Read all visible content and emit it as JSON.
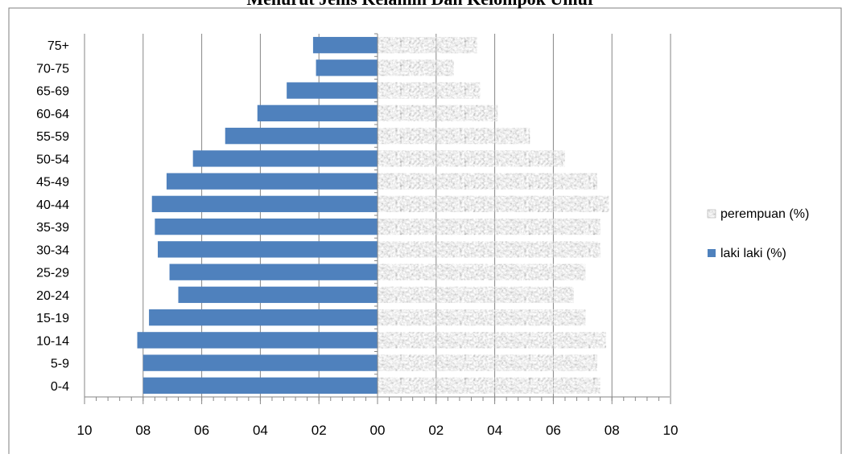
{
  "title": "Menurut Jenis Kelamin Dan Kelompok Umur",
  "colors": {
    "male": "#4f81bd",
    "female_base": "#c8c8c8",
    "gridline": "#868686",
    "axis": "#868686",
    "frame": "#7f7f7f"
  },
  "chart_data": {
    "type": "bar",
    "orientation": "horizontal",
    "style": "population-pyramid",
    "categories": [
      "75+",
      "70-75",
      "65-69",
      "60-64",
      "55-59",
      "50-54",
      "45-49",
      "40-44",
      "35-39",
      "30-34",
      "25-29",
      "20-24",
      "15-19",
      "10-14",
      "5-9",
      "0-4"
    ],
    "series": [
      {
        "name": "laki laki (%)",
        "side": "left",
        "color": "#4f81bd",
        "values": [
          2.2,
          2.1,
          3.1,
          4.1,
          5.2,
          6.3,
          7.2,
          7.7,
          7.6,
          7.5,
          7.1,
          6.8,
          7.8,
          8.2,
          8.0,
          8.0
        ]
      },
      {
        "name": "perempuan (%)",
        "side": "right",
        "color": "#c8c8c8",
        "pattern": "marble",
        "values": [
          3.4,
          2.6,
          3.5,
          4.1,
          5.2,
          6.4,
          7.5,
          7.9,
          7.6,
          7.6,
          7.1,
          6.7,
          7.1,
          7.8,
          7.5,
          7.6
        ]
      }
    ],
    "xlim": [
      -10,
      10
    ],
    "xticks": [
      -10,
      -8,
      -6,
      -4,
      -2,
      0,
      2,
      4,
      6,
      8,
      10
    ],
    "xtick_labels": [
      "10",
      "08",
      "06",
      "04",
      "02",
      "00",
      "02",
      "04",
      "06",
      "08",
      "10"
    ],
    "xlabel": "",
    "ylabel": "",
    "grid": "vertical",
    "legend": {
      "position": "right",
      "entries": [
        "perempuan (%)",
        "laki laki (%)"
      ]
    }
  }
}
